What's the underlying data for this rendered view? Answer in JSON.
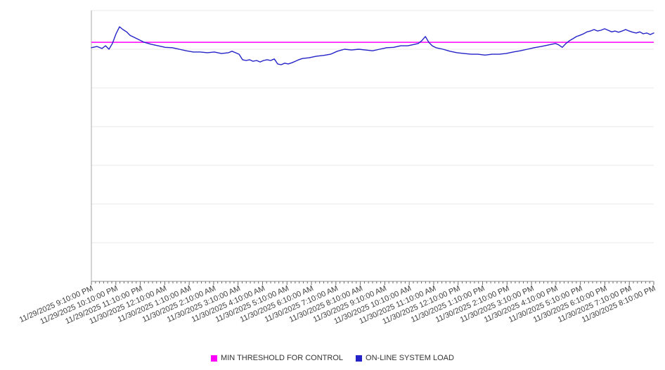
{
  "page": {
    "background": "#ffffff"
  },
  "chart_data": {
    "type": "line",
    "title": "",
    "x": {
      "range_hours": [
        0,
        23
      ],
      "major_tick_every_minutes": 60,
      "minor_tick_every_minutes": 10,
      "tick_labels": [
        "11/29/2025 9:10:00 PM",
        "11/29/2025 10:10:00 PM",
        "11/29/2025 11:10:00 PM",
        "11/30/2025 12:10:00 AM",
        "11/30/2025 1:10:00 AM",
        "11/30/2025 2:10:00 AM",
        "11/30/2025 3:10:00 AM",
        "11/30/2025 4:10:00 AM",
        "11/30/2025 5:10:00 AM",
        "11/30/2025 6:10:00 AM",
        "11/30/2025 7:10:00 AM",
        "11/30/2025 8:10:00 AM",
        "11/30/2025 9:10:00 AM",
        "11/30/2025 10:10:00 AM",
        "11/30/2025 11:10:00 AM",
        "11/30/2025 12:10:00 PM",
        "11/30/2025 1:10:00 PM",
        "11/30/2025 2:10:00 PM",
        "11/30/2025 3:10:00 PM",
        "11/30/2025 4:10:00 PM",
        "11/30/2025 5:10:00 PM",
        "11/30/2025 6:10:00 PM",
        "11/30/2025 7:10:00 PM",
        "11/30/2025 8:10:00 PM"
      ]
    },
    "y": {
      "ylim": [
        0,
        70
      ],
      "gridline_step": 10,
      "tick_labels_visible": false
    },
    "grid": "on",
    "legend_position": "bottom-center",
    "colors": {
      "grid": "#e8e8e8",
      "axis": "#8c8c8c",
      "spine": "#ababab",
      "tick": "#6f6f6f",
      "label_text": "#3d3d3d"
    },
    "series": [
      {
        "name": "MIN THRESHOLD FOR CONTROL",
        "color": "#ff00ff",
        "style": "horizontal-threshold",
        "value": 61.8
      },
      {
        "name": "ON-LINE SYSTEM LOAD",
        "color": "#2323c8",
        "style": "line",
        "points": [
          [
            0,
            60.4
          ],
          [
            0.23,
            60.7
          ],
          [
            0.43,
            60.2
          ],
          [
            0.58,
            60.9
          ],
          [
            0.72,
            60.0
          ],
          [
            0.86,
            61.5
          ],
          [
            1.01,
            64.0
          ],
          [
            1.15,
            65.8
          ],
          [
            1.29,
            65.1
          ],
          [
            1.44,
            64.5
          ],
          [
            1.58,
            63.6
          ],
          [
            1.87,
            62.7
          ],
          [
            2.16,
            61.8
          ],
          [
            2.44,
            61.3
          ],
          [
            2.73,
            60.9
          ],
          [
            3.02,
            60.5
          ],
          [
            3.31,
            60.4
          ],
          [
            3.59,
            60.0
          ],
          [
            3.88,
            59.6
          ],
          [
            4.17,
            59.3
          ],
          [
            4.46,
            59.3
          ],
          [
            4.74,
            59.1
          ],
          [
            5.03,
            59.3
          ],
          [
            5.32,
            58.9
          ],
          [
            5.61,
            59.1
          ],
          [
            5.75,
            59.5
          ],
          [
            5.89,
            59.1
          ],
          [
            6.04,
            58.7
          ],
          [
            6.18,
            57.3
          ],
          [
            6.33,
            57.1
          ],
          [
            6.47,
            57.3
          ],
          [
            6.61,
            56.9
          ],
          [
            6.76,
            57.1
          ],
          [
            6.9,
            56.7
          ],
          [
            7.04,
            57.1
          ],
          [
            7.19,
            57.3
          ],
          [
            7.33,
            57.1
          ],
          [
            7.48,
            57.5
          ],
          [
            7.62,
            56.2
          ],
          [
            7.76,
            56.0
          ],
          [
            7.91,
            56.4
          ],
          [
            8.05,
            56.2
          ],
          [
            8.19,
            56.5
          ],
          [
            8.34,
            56.9
          ],
          [
            8.48,
            57.3
          ],
          [
            8.63,
            57.6
          ],
          [
            8.91,
            57.8
          ],
          [
            9.2,
            58.2
          ],
          [
            9.49,
            58.4
          ],
          [
            9.78,
            58.7
          ],
          [
            10.06,
            59.5
          ],
          [
            10.35,
            60.0
          ],
          [
            10.64,
            59.8
          ],
          [
            10.93,
            60.0
          ],
          [
            11.21,
            59.8
          ],
          [
            11.5,
            59.6
          ],
          [
            11.79,
            60.0
          ],
          [
            12.08,
            60.4
          ],
          [
            12.36,
            60.5
          ],
          [
            12.65,
            60.9
          ],
          [
            12.94,
            60.9
          ],
          [
            13.23,
            61.3
          ],
          [
            13.37,
            61.5
          ],
          [
            13.51,
            62.2
          ],
          [
            13.66,
            63.3
          ],
          [
            13.8,
            61.8
          ],
          [
            13.94,
            60.9
          ],
          [
            14.09,
            60.4
          ],
          [
            14.38,
            60.0
          ],
          [
            14.66,
            59.5
          ],
          [
            14.95,
            59.1
          ],
          [
            15.24,
            58.9
          ],
          [
            15.53,
            58.7
          ],
          [
            15.81,
            58.7
          ],
          [
            16.1,
            58.5
          ],
          [
            16.39,
            58.7
          ],
          [
            16.68,
            58.7
          ],
          [
            16.96,
            58.9
          ],
          [
            17.25,
            59.3
          ],
          [
            17.54,
            59.6
          ],
          [
            17.83,
            60.0
          ],
          [
            18.11,
            60.4
          ],
          [
            18.4,
            60.7
          ],
          [
            18.69,
            61.1
          ],
          [
            18.98,
            61.5
          ],
          [
            19.12,
            61.1
          ],
          [
            19.26,
            60.5
          ],
          [
            19.41,
            61.5
          ],
          [
            19.55,
            62.2
          ],
          [
            19.69,
            62.7
          ],
          [
            19.84,
            63.3
          ],
          [
            19.98,
            63.6
          ],
          [
            20.13,
            64.0
          ],
          [
            20.27,
            64.5
          ],
          [
            20.41,
            64.7
          ],
          [
            20.56,
            65.1
          ],
          [
            20.7,
            64.7
          ],
          [
            20.84,
            64.9
          ],
          [
            20.99,
            65.3
          ],
          [
            21.13,
            64.9
          ],
          [
            21.28,
            64.5
          ],
          [
            21.42,
            64.7
          ],
          [
            21.56,
            64.4
          ],
          [
            21.71,
            64.7
          ],
          [
            21.85,
            65.1
          ],
          [
            21.99,
            64.7
          ],
          [
            22.14,
            64.4
          ],
          [
            22.28,
            64.2
          ],
          [
            22.43,
            64.5
          ],
          [
            22.57,
            64.0
          ],
          [
            22.71,
            64.2
          ],
          [
            22.86,
            63.8
          ],
          [
            23,
            64.2
          ]
        ]
      }
    ]
  }
}
